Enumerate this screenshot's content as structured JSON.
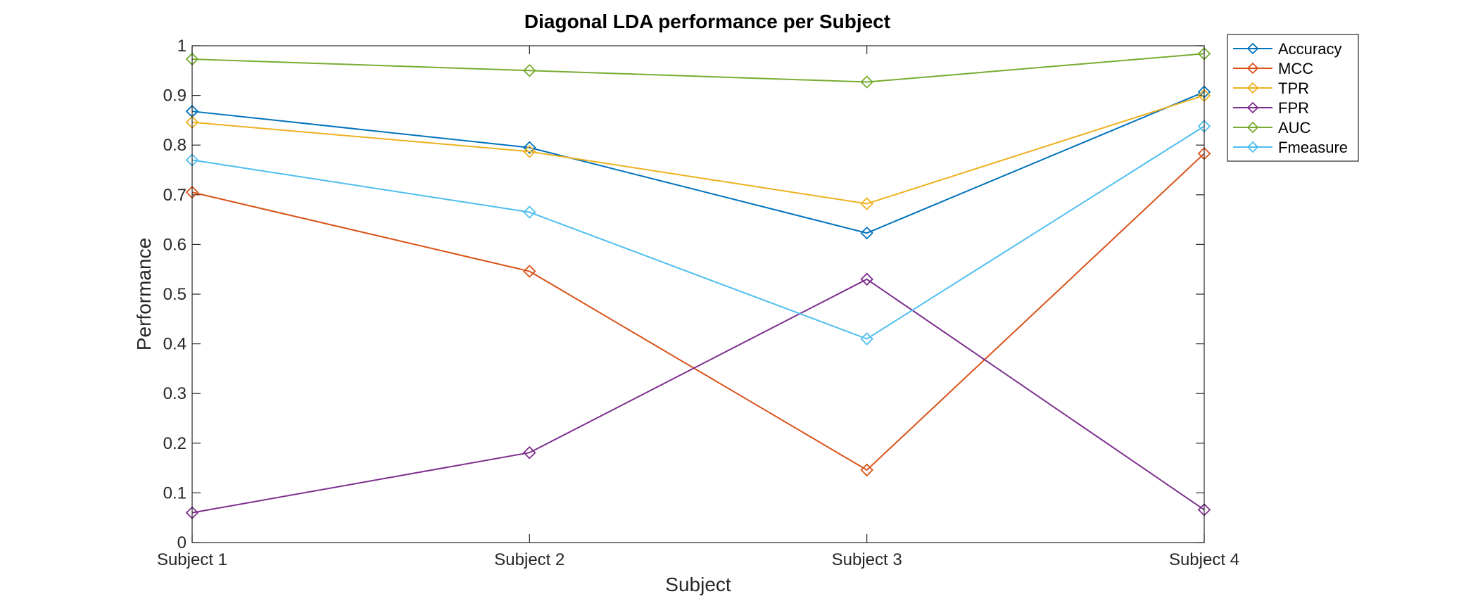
{
  "chart_data": {
    "type": "line",
    "title": "Diagonal LDA performance per Subject",
    "xlabel": "Subject",
    "ylabel": "Performance",
    "categories": [
      "Subject 1",
      "Subject 2",
      "Subject 3",
      "Subject 4"
    ],
    "ylim": [
      0,
      1
    ],
    "yticks": [
      "0",
      "0.1",
      "0.2",
      "0.3",
      "0.4",
      "0.5",
      "0.6",
      "0.7",
      "0.8",
      "0.9",
      "1"
    ],
    "grid": false,
    "legend_position": "outside-top-right",
    "marker": "diamond",
    "series": [
      {
        "name": "Accuracy",
        "color": "#0072BD",
        "values": [
          0.868,
          0.795,
          0.623,
          0.907
        ]
      },
      {
        "name": "MCC",
        "color": "#D95319",
        "values": [
          0.705,
          0.546,
          0.146,
          0.783
        ]
      },
      {
        "name": "TPR",
        "color": "#EDB120",
        "values": [
          0.846,
          0.787,
          0.682,
          0.9
        ]
      },
      {
        "name": "FPR",
        "color": "#7E2F8E",
        "values": [
          0.06,
          0.181,
          0.53,
          0.066
        ]
      },
      {
        "name": "AUC",
        "color": "#77AC30",
        "values": [
          0.973,
          0.95,
          0.927,
          0.984
        ]
      },
      {
        "name": "Fmeasure",
        "color": "#4DBEEE",
        "values": [
          0.77,
          0.665,
          0.41,
          0.838
        ]
      }
    ]
  }
}
